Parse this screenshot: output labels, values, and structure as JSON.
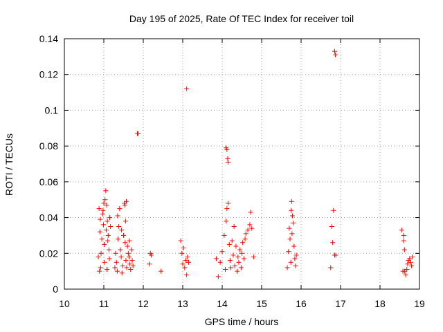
{
  "chart_data": {
    "type": "scatter",
    "title": "Day 195 of 2025, Rate Of TEC Index for receiver toil",
    "xlabel": "GPS time / hours",
    "ylabel": "ROTI / TECUs",
    "xlim": [
      10,
      19
    ],
    "ylim": [
      0,
      0.14
    ],
    "xticks": [
      10,
      11,
      12,
      13,
      14,
      15,
      16,
      17,
      18,
      19
    ],
    "xtick_labels": [
      "10",
      "11",
      "12",
      "13",
      "14",
      "15",
      "16",
      "17",
      "18",
      "19"
    ],
    "yticks": [
      0,
      0.02,
      0.04,
      0.06,
      0.08,
      0.1,
      0.12,
      0.14
    ],
    "ytick_labels": [
      "0",
      "0.02",
      "0.04",
      "0.06",
      "0.08",
      "0.1",
      "0.12",
      "0.14"
    ],
    "grid": true,
    "marker": "+",
    "series_color": "#ff0000",
    "series": [
      {
        "name": "ROTI",
        "x": [
          10.86,
          10.88,
          10.9,
          10.92,
          10.95,
          10.97,
          10.99,
          11.01,
          11.03,
          11.05,
          11.07,
          11.09,
          11.11,
          11.13,
          11.15,
          11.17,
          10.89,
          10.93,
          10.98,
          11.02,
          11.06,
          11.1,
          11.14,
          10.91,
          11.0,
          11.08,
          11.28,
          11.3,
          11.32,
          11.34,
          11.36,
          11.38,
          11.4,
          11.42,
          11.44,
          11.46,
          11.48,
          11.5,
          11.52,
          11.54,
          11.56,
          11.58,
          11.6,
          11.62,
          11.64,
          11.66,
          11.68,
          11.7,
          11.72,
          11.74,
          11.35,
          11.45,
          11.55,
          11.65,
          11.53,
          11.57,
          11.85,
          11.87,
          12.15,
          12.18,
          12.2,
          12.45,
          12.95,
          12.98,
          13.0,
          13.02,
          13.05,
          13.08,
          13.1,
          13.12,
          13.15,
          13.1,
          13.85,
          13.9,
          13.95,
          14.0,
          14.05,
          14.08,
          14.1,
          14.12,
          14.15,
          14.18,
          14.2,
          14.22,
          14.25,
          14.28,
          14.3,
          14.32,
          14.35,
          14.38,
          14.4,
          14.42,
          14.45,
          14.48,
          14.5,
          14.52,
          14.55,
          14.58,
          14.6,
          14.65,
          14.7,
          14.75,
          14.8,
          14.1,
          14.12,
          14.14,
          14.15,
          14.72,
          15.65,
          15.68,
          15.7,
          15.72,
          15.74,
          15.76,
          15.78,
          15.8,
          15.82,
          15.84,
          15.86,
          15.88,
          15.75,
          15.77,
          16.75,
          16.78,
          16.8,
          16.82,
          16.85,
          16.88,
          16.85,
          16.87,
          18.55,
          18.58,
          18.6,
          18.62,
          18.65,
          18.68,
          18.7,
          18.72,
          18.75,
          18.78,
          18.8,
          18.82,
          18.6,
          18.62
        ],
        "y": [
          0.018,
          0.045,
          0.032,
          0.012,
          0.028,
          0.042,
          0.036,
          0.025,
          0.05,
          0.055,
          0.047,
          0.038,
          0.03,
          0.022,
          0.04,
          0.035,
          0.01,
          0.02,
          0.044,
          0.015,
          0.033,
          0.027,
          0.017,
          0.039,
          0.048,
          0.011,
          0.012,
          0.02,
          0.015,
          0.01,
          0.028,
          0.035,
          0.045,
          0.022,
          0.018,
          0.009,
          0.013,
          0.03,
          0.048,
          0.026,
          0.016,
          0.012,
          0.024,
          0.02,
          0.018,
          0.014,
          0.011,
          0.022,
          0.016,
          0.013,
          0.041,
          0.033,
          0.038,
          0.027,
          0.047,
          0.049,
          0.087,
          0.087,
          0.014,
          0.02,
          0.019,
          0.01,
          0.027,
          0.02,
          0.014,
          0.023,
          0.012,
          0.016,
          0.008,
          0.018,
          0.015,
          0.112,
          0.017,
          0.007,
          0.015,
          0.021,
          0.03,
          0.011,
          0.038,
          0.045,
          0.048,
          0.025,
          0.016,
          0.012,
          0.027,
          0.019,
          0.035,
          0.013,
          0.024,
          0.01,
          0.018,
          0.015,
          0.022,
          0.012,
          0.02,
          0.026,
          0.017,
          0.028,
          0.031,
          0.033,
          0.036,
          0.034,
          0.018,
          0.079,
          0.078,
          0.073,
          0.071,
          0.043,
          0.012,
          0.021,
          0.034,
          0.028,
          0.015,
          0.049,
          0.041,
          0.037,
          0.024,
          0.017,
          0.013,
          0.019,
          0.044,
          0.031,
          0.012,
          0.035,
          0.026,
          0.044,
          0.019,
          0.019,
          0.133,
          0.131,
          0.033,
          0.01,
          0.027,
          0.022,
          0.008,
          0.011,
          0.014,
          0.016,
          0.017,
          0.015,
          0.013,
          0.018,
          0.03,
          0.01
        ]
      }
    ]
  }
}
